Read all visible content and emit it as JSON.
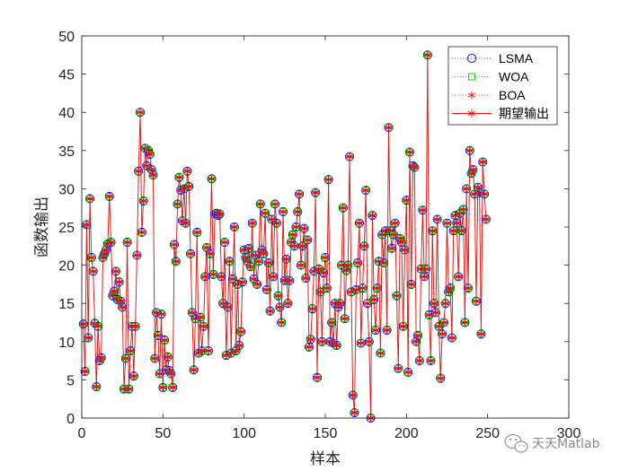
{
  "colors": {
    "lsma": "#0000ff",
    "woa": "#00cc00",
    "boa": "#ff2222",
    "expected": "#ff0000",
    "axes": "#262626",
    "watermark": "#8a8a8a"
  },
  "watermark": {
    "text": "天天Matlab",
    "icon": "wechat-icon"
  },
  "chart_data": {
    "type": "line",
    "xlabel": "样本",
    "ylabel": "函数输出",
    "xlim": [
      0,
      300
    ],
    "ylim": [
      0,
      50
    ],
    "xticks": [
      0,
      50,
      100,
      150,
      200,
      250,
      300
    ],
    "yticks": [
      0,
      5,
      10,
      15,
      20,
      25,
      30,
      35,
      40,
      45,
      50
    ],
    "grid": false,
    "legend_position": "top-right",
    "series": [
      {
        "name": "LSMA",
        "marker": "circle",
        "line": "dotted",
        "color_key": "lsma"
      },
      {
        "name": "WOA",
        "marker": "square",
        "line": "dotted",
        "color_key": "woa"
      },
      {
        "name": "BOA",
        "marker": "star",
        "line": "dotted",
        "color_key": "boa"
      },
      {
        "name": "期望输出",
        "marker": "asterisk",
        "line": "solid",
        "color_key": "expected"
      }
    ],
    "note_series_values": "All four series coincide; the shared values are listed once in y.",
    "x_start": 1,
    "y": [
      12.3,
      6.1,
      25.3,
      10.5,
      28.7,
      21.0,
      19.2,
      12.4,
      4.1,
      12.0,
      7.5,
      7.9,
      21.0,
      21.5,
      22.0,
      22.8,
      29.0,
      23.0,
      16.0,
      16.6,
      19.2,
      15.5,
      17.8,
      15.3,
      14.5,
      3.8,
      7.8,
      23.0,
      3.8,
      8.8,
      12.0,
      5.5,
      12.0,
      21.3,
      32.3,
      40.0,
      24.3,
      28.4,
      35.3,
      33.0,
      35.0,
      34.5,
      32.5,
      31.8,
      7.8,
      13.8,
      10.8,
      5.8,
      13.6,
      4.0,
      10.2,
      6.3,
      8.0,
      6.2,
      5.8,
      4.0,
      22.7,
      20.5,
      28.0,
      31.5,
      29.8,
      25.8,
      30.0,
      25.5,
      32.3,
      30.3,
      21.5,
      13.8,
      6.3,
      13.0,
      24.3,
      8.5,
      13.2,
      8.8,
      12.0,
      18.5,
      22.3,
      8.8,
      21.5,
      31.3,
      18.8,
      26.7,
      26.8,
      26.5,
      26.7,
      18.5,
      15.0,
      23.0,
      8.2,
      14.5,
      20.5,
      8.5,
      18.2,
      25.0,
      8.8,
      17.5,
      9.5,
      11.3,
      17.8,
      22.0,
      21.0,
      20.5,
      22.2,
      19.8,
      25.5,
      18.2,
      21.3,
      17.5,
      20.5,
      28.0,
      22.0,
      21.5,
      26.8,
      16.8,
      20.3,
      14.0,
      26.0,
      18.5,
      28.0,
      25.5,
      16.0,
      14.5,
      12.5,
      27.0,
      18.0,
      20.8,
      15.0,
      18.0,
      23.0,
      24.0,
      22.5,
      25.0,
      27.0,
      29.3,
      20.0,
      22.5,
      24.8,
      18.3,
      23.3,
      9.3,
      10.3,
      14.3,
      19.2,
      29.5,
      5.3,
      19.5,
      16.5,
      10.0,
      19.0,
      21.0,
      17.0,
      31.2,
      10.0,
      12.5,
      9.8,
      15.0,
      9.5,
      14.5,
      15.0,
      20.0,
      27.5,
      13.0,
      19.3,
      20.0,
      34.2,
      16.5,
      3.0,
      0.7,
      16.8,
      20.3,
      25.5,
      9.8,
      17.0,
      22.5,
      29.8,
      15.0,
      10.0,
      0.0,
      26.5,
      15.5,
      11.5,
      17.0,
      20.5,
      8.5,
      24.0,
      20.3,
      24.5,
      11.5,
      38.0,
      24.5,
      22.2,
      24.0,
      25.5,
      16.0,
      6.5,
      23.5,
      23.0,
      12.0,
      22.0,
      28.5,
      6.0,
      34.8,
      17.5,
      33.0,
      32.8,
      10.0,
      10.8,
      7.5,
      19.5,
      27.2,
      18.5,
      19.5,
      47.5,
      13.5,
      7.5,
      24.5,
      15.0,
      13.8,
      26.0,
      12.0,
      5.2,
      11.0,
      12.5,
      15.0,
      25.5,
      16.5,
      17.0,
      10.5,
      24.5,
      26.5,
      25.5,
      18.5,
      26.8,
      24.5,
      27.3,
      12.5,
      30.0,
      17.0,
      35.0,
      32.0,
      32.5,
      29.3,
      15.3,
      30.2,
      29.5,
      11.0,
      33.5,
      29.3,
      26.0
    ]
  }
}
